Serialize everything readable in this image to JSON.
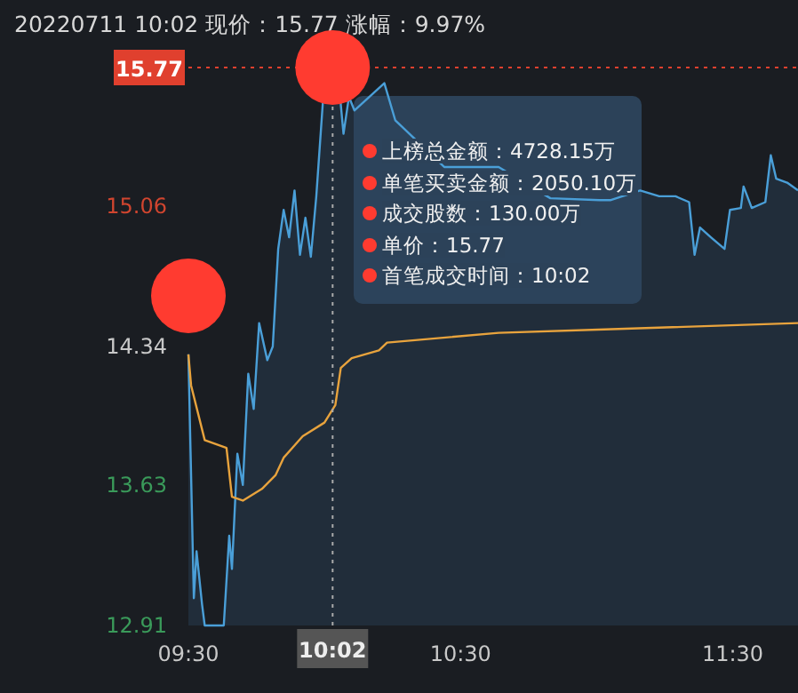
{
  "chart_data": {
    "type": "line",
    "title": "20220711 10:02 现价：15.77 涨幅：9.97%",
    "xlim": [
      9.5,
      11.74
    ],
    "xticks": [
      {
        "value": 9.5,
        "label": "09:30"
      },
      {
        "value": 10.5,
        "label": "10:30"
      },
      {
        "value": 11.5,
        "label": "11:30"
      }
    ],
    "ylim": [
      12.91,
      15.77
    ],
    "yticks": [
      12.91,
      13.63,
      14.34,
      15.06
    ],
    "series": [
      {
        "type": "area",
        "color": "#4a9fd8",
        "x": [
          9.5,
          9.52,
          9.53,
          9.55,
          9.56,
          9.63,
          9.65,
          9.66,
          9.68,
          9.7,
          9.72,
          9.74,
          9.76,
          9.79,
          9.81,
          9.83,
          9.85,
          9.87,
          9.89,
          9.91,
          9.93,
          9.95,
          9.97,
          10.0,
          10.02,
          10.04,
          10.05,
          10.07,
          10.09,
          10.11,
          10.22,
          10.26,
          10.44,
          10.64,
          10.83,
          11.01,
          11.05,
          11.16,
          11.23,
          11.29,
          11.34,
          11.36,
          11.38,
          11.42,
          11.47,
          11.49,
          11.53,
          11.54,
          11.57,
          11.62,
          11.64,
          11.66,
          11.7,
          11.74
        ],
        "values": [
          14.3,
          13.05,
          13.29,
          13.02,
          12.91,
          12.91,
          13.37,
          13.2,
          13.79,
          13.63,
          14.2,
          14.02,
          14.46,
          14.27,
          14.34,
          14.84,
          15.04,
          14.9,
          15.14,
          14.81,
          15.0,
          14.8,
          15.11,
          15.71,
          15.77,
          15.59,
          15.73,
          15.43,
          15.62,
          15.55,
          15.69,
          15.5,
          15.26,
          15.26,
          15.1,
          15.09,
          15.09,
          15.14,
          15.11,
          15.11,
          15.08,
          14.81,
          14.95,
          14.9,
          14.84,
          15.04,
          15.05,
          15.16,
          15.05,
          15.08,
          15.32,
          15.2,
          15.18,
          15.14
        ]
      },
      {
        "type": "line",
        "color": "#e8a33d",
        "x": [
          9.5,
          9.51,
          9.56,
          9.64,
          9.66,
          9.7,
          9.77,
          9.82,
          9.85,
          9.92,
          10.0,
          10.04,
          10.06,
          10.1,
          10.2,
          10.23,
          10.64,
          11.08,
          11.74
        ],
        "values": [
          14.3,
          14.14,
          13.86,
          13.82,
          13.57,
          13.55,
          13.61,
          13.68,
          13.77,
          13.88,
          13.95,
          14.04,
          14.23,
          14.28,
          14.32,
          14.36,
          14.41,
          14.43,
          14.46
        ]
      },
      {
        "type": "scatter",
        "color": "#ff3b30",
        "x": [
          9.5,
          10.03
        ],
        "values": [
          14.6,
          15.77
        ]
      }
    ],
    "ref_lines": [
      {
        "axis": "x",
        "value": 10.03,
        "label": "10:02",
        "color": "#aaaaaa",
        "line_style": "dotted"
      },
      {
        "axis": "y",
        "value": 15.77,
        "label": "15.77",
        "color": "#e0402e",
        "line_style": "dotted"
      }
    ],
    "annotations": [
      "上榜总金额：4728.15万",
      "单笔买卖金额：2050.10万",
      "成交股数：130.00万",
      "单价：15.77",
      "首笔成交时间：10:02"
    ]
  }
}
